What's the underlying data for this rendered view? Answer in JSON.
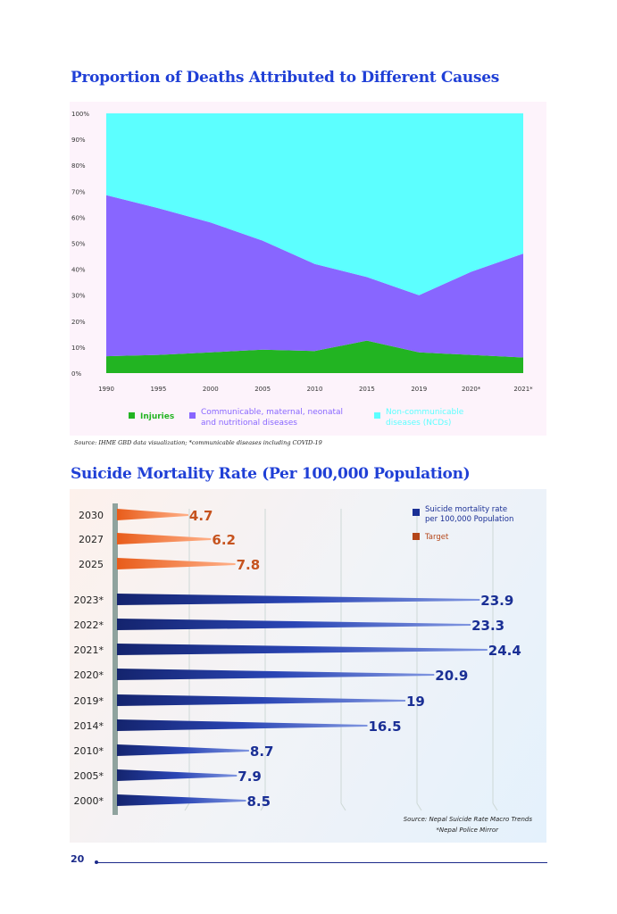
{
  "page_number": "20",
  "chart_data": [
    {
      "type": "area",
      "stacked": true,
      "title": "Proportion of Deaths Attributed to Different Causes",
      "categories": [
        "1990",
        "1995",
        "2000",
        "2005",
        "2010",
        "2015",
        "2019",
        "2020*",
        "2021*"
      ],
      "yticks": [
        "0%",
        "10%",
        "20%",
        "30%",
        "40%",
        "50%",
        "60%",
        "70%",
        "80%",
        "90%",
        "100%"
      ],
      "ylim": [
        0,
        100
      ],
      "series": [
        {
          "name": "Injuries",
          "color": "#22b422",
          "values": [
            6.5,
            7,
            8,
            9,
            8.5,
            12.5,
            8,
            7,
            6
          ]
        },
        {
          "name": "Communicable, maternal, neonatal and nutritional diseases",
          "color": "#8866ff",
          "values": [
            62,
            56.5,
            50,
            42,
            33.5,
            24.5,
            22,
            32,
            40
          ]
        },
        {
          "name": "Non-communicable diseases (NCDs)",
          "color": "#5cffff",
          "values": [
            31.5,
            36.5,
            42,
            49,
            58,
            63,
            70,
            61,
            54
          ]
        }
      ],
      "legend": [
        "Injuries",
        "Communicable, maternal, neonatal",
        "and nutritional diseases",
        "Non-communicable",
        "diseases (NCDs)"
      ],
      "source": "Source: IHME GBD data visualization; *communicable diseases including COVID-19"
    },
    {
      "type": "bar",
      "orientation": "horizontal",
      "title": "Suicide Mortality Rate (Per 100,000 Population)",
      "xlim": [
        0,
        25
      ],
      "gridlines": [
        5,
        10,
        15,
        20,
        25
      ],
      "categories": [
        "2030",
        "2027",
        "2025",
        "2023*",
        "2022*",
        "2021*",
        "2020*",
        "2019*",
        "2014*",
        "2010*",
        "2005*",
        "2000*"
      ],
      "values": [
        4.7,
        6.2,
        7.8,
        23.9,
        23.3,
        24.4,
        20.9,
        19,
        16.5,
        8.7,
        7.9,
        8.5
      ],
      "labels": [
        "4.7",
        "6.2",
        "7.8",
        "23.9",
        "23.3",
        "24.4",
        "20.9",
        "19",
        "16.5",
        "8.7",
        "7.9",
        "8.5"
      ],
      "series_type": [
        "target",
        "target",
        "target",
        "actual",
        "actual",
        "actual",
        "actual",
        "actual",
        "actual",
        "actual",
        "actual",
        "actual"
      ],
      "colors": {
        "actual": "#1a2f95",
        "target": "#e8692a"
      },
      "legend": [
        "Suicide mortality rate",
        "per 100,000 Population",
        "Target"
      ],
      "source": [
        "Source: Nepal Suicide Rate Macro Trends",
        "*Nepal Police Mirror"
      ]
    }
  ]
}
